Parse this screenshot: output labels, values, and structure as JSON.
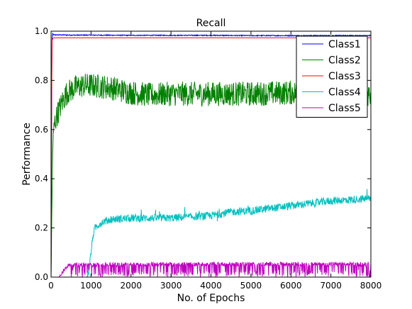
{
  "chart_data": {
    "type": "line",
    "title": "Recall",
    "xlabel": "No. of Epochs",
    "ylabel": "Performance",
    "xlim": [
      0,
      8000
    ],
    "ylim": [
      0.0,
      1.0
    ],
    "xticks": [
      "0",
      "1000",
      "2000",
      "3000",
      "4000",
      "5000",
      "6000",
      "7000",
      "8000"
    ],
    "yticks": [
      "0.0",
      "0.2",
      "0.4",
      "0.6",
      "0.8",
      "1.0"
    ],
    "legend_position": "top-right",
    "grid": false,
    "series": [
      {
        "name": "Class1",
        "color": "#0000ff",
        "x": [
          0,
          20,
          40,
          60,
          100,
          200,
          500,
          1000,
          2000,
          3000,
          4000,
          5000,
          6000,
          7000,
          8000
        ],
        "y": [
          0.0,
          0.96,
          0.99,
          0.985,
          0.985,
          0.985,
          0.984,
          0.984,
          0.983,
          0.983,
          0.983,
          0.982,
          0.982,
          0.982,
          0.982
        ],
        "noise": 0.002
      },
      {
        "name": "Class2",
        "color": "#008000",
        "x": [
          0,
          40,
          80,
          150,
          200,
          300,
          400,
          600,
          800,
          1000,
          1500,
          2000,
          2500,
          3000,
          3500,
          4000,
          5000,
          6000,
          7000,
          7500,
          8000
        ],
        "y": [
          0.0,
          0.52,
          0.62,
          0.66,
          0.68,
          0.72,
          0.75,
          0.77,
          0.78,
          0.78,
          0.77,
          0.75,
          0.74,
          0.745,
          0.745,
          0.745,
          0.745,
          0.75,
          0.755,
          0.75,
          0.745
        ],
        "noise": 0.05
      },
      {
        "name": "Class3",
        "color": "#ff0000",
        "x": [
          0,
          20,
          50,
          100,
          1000,
          4000,
          8000
        ],
        "y": [
          0.0,
          0.96,
          0.972,
          0.973,
          0.973,
          0.973,
          0.973
        ],
        "noise": 0.0
      },
      {
        "name": "Class4",
        "color": "#00bfbf",
        "x": [
          0,
          900,
          950,
          1000,
          1050,
          1100,
          1200,
          1300,
          1500,
          2000,
          2500,
          3000,
          3500,
          4000,
          4500,
          5000,
          5500,
          6000,
          6500,
          7000,
          7500,
          8000
        ],
        "y": [
          0.0,
          0.0,
          0.03,
          0.1,
          0.17,
          0.2,
          0.215,
          0.225,
          0.235,
          0.24,
          0.24,
          0.24,
          0.245,
          0.25,
          0.265,
          0.27,
          0.28,
          0.29,
          0.3,
          0.31,
          0.315,
          0.32
        ],
        "noise": 0.016
      },
      {
        "name": "Class5",
        "color": "#bf00bf",
        "x": [
          0,
          200,
          250,
          300,
          350,
          400,
          500,
          1000,
          2000,
          4000,
          6000,
          8000
        ],
        "y": [
          0.0,
          0.0,
          0.008,
          0.022,
          0.035,
          0.045,
          0.05,
          0.05,
          0.052,
          0.053,
          0.053,
          0.052
        ],
        "noise": 0.008
      }
    ]
  }
}
